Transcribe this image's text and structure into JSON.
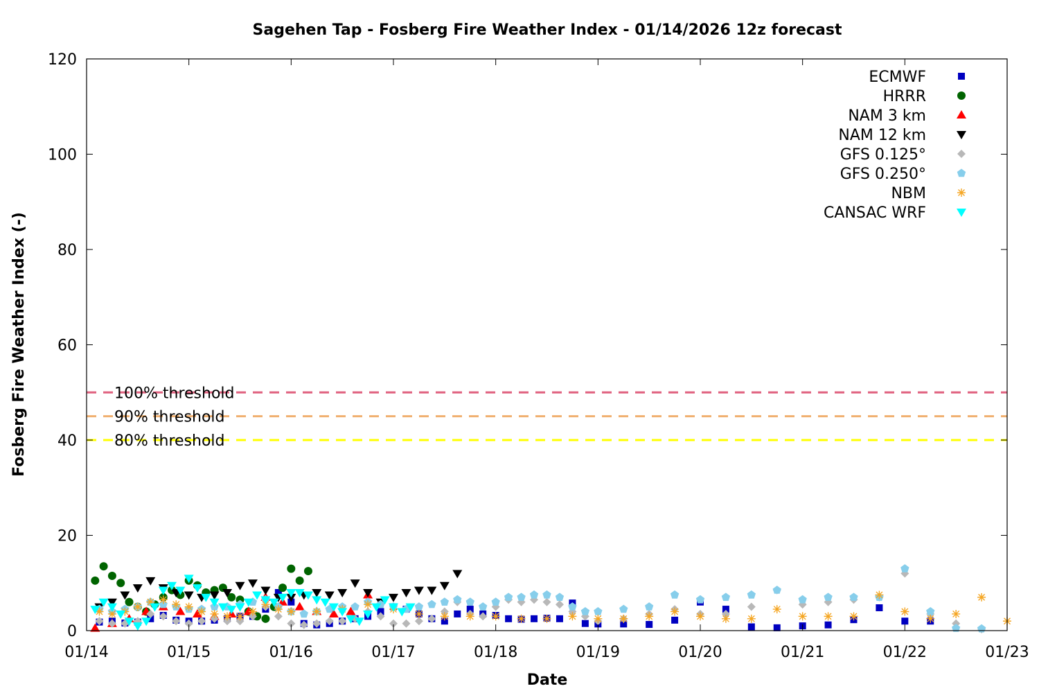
{
  "chart_data": {
    "type": "scatter",
    "title": "Sagehen Tap - Fosberg Fire Weather Index - 01/14/2026 12z forecast",
    "xlabel": "Date",
    "ylabel": "Fosberg Fire Weather Index (-)",
    "xlim": [
      "2026-01-14 00:00",
      "2026-01-23 00:00"
    ],
    "ylim": [
      0,
      120
    ],
    "x_ticks": [
      "01/14",
      "01/15",
      "01/16",
      "01/17",
      "01/18",
      "01/19",
      "01/20",
      "01/21",
      "01/22",
      "01/23"
    ],
    "y_ticks": [
      0,
      20,
      40,
      60,
      80,
      100,
      120
    ],
    "grid": false,
    "legend_position": "top-right",
    "thresholds": [
      {
        "label": "100% threshold",
        "value": 50,
        "color": "#e0607e"
      },
      {
        "label": "90% threshold",
        "value": 45,
        "color": "#f0b070"
      },
      {
        "label": "80% threshold",
        "value": 40,
        "color": "#ffff00"
      }
    ],
    "series": [
      {
        "name": "ECMWF",
        "color": "#0000c0",
        "marker": "square",
        "x": [
          "2026-01-14 03:00",
          "2026-01-14 06:00",
          "2026-01-14 09:00",
          "2026-01-14 12:00",
          "2026-01-14 15:00",
          "2026-01-14 18:00",
          "2026-01-14 21:00",
          "2026-01-15 00:00",
          "2026-01-15 03:00",
          "2026-01-15 06:00",
          "2026-01-15 09:00",
          "2026-01-15 12:00",
          "2026-01-15 15:00",
          "2026-01-15 18:00",
          "2026-01-15 21:00",
          "2026-01-16 00:00",
          "2026-01-16 03:00",
          "2026-01-16 06:00",
          "2026-01-16 09:00",
          "2026-01-16 12:00",
          "2026-01-16 15:00",
          "2026-01-16 18:00",
          "2026-01-16 21:00",
          "2026-01-17 00:00",
          "2026-01-17 03:00",
          "2026-01-17 06:00",
          "2026-01-17 09:00",
          "2026-01-17 12:00",
          "2026-01-17 15:00",
          "2026-01-17 18:00",
          "2026-01-17 21:00",
          "2026-01-18 00:00",
          "2026-01-18 03:00",
          "2026-01-18 06:00",
          "2026-01-18 09:00",
          "2026-01-18 12:00",
          "2026-01-18 15:00",
          "2026-01-18 18:00",
          "2026-01-18 21:00",
          "2026-01-19 00:00",
          "2026-01-19 06:00",
          "2026-01-19 12:00",
          "2026-01-19 18:00",
          "2026-01-20 00:00",
          "2026-01-20 06:00",
          "2026-01-20 12:00",
          "2026-01-20 18:00",
          "2026-01-21 00:00",
          "2026-01-21 06:00",
          "2026-01-21 12:00",
          "2026-01-21 18:00",
          "2026-01-22 00:00",
          "2026-01-22 06:00"
        ],
        "values": [
          1.8,
          2.0,
          1.6,
          1.8,
          2.5,
          3.2,
          2.2,
          2.0,
          2.0,
          2.2,
          2.5,
          3.0,
          3.0,
          4.5,
          8.0,
          6.0,
          1.5,
          1.2,
          1.5,
          2.0,
          2.5,
          3.0,
          4.0,
          5.0,
          4.5,
          3.5,
          2.5,
          2.0,
          3.5,
          4.5,
          3.5,
          3.2,
          2.5,
          2.4,
          2.5,
          2.6,
          2.5,
          5.8,
          1.5,
          1.4,
          1.4,
          1.3,
          2.2,
          6.0,
          4.5,
          0.8,
          0.6,
          1.0,
          1.2,
          2.3,
          4.8,
          2.0,
          2.0
        ]
      },
      {
        "name": "HRRR",
        "color": "#006400",
        "marker": "circle",
        "x": [
          "2026-01-14 02:00",
          "2026-01-14 04:00",
          "2026-01-14 06:00",
          "2026-01-14 08:00",
          "2026-01-14 10:00",
          "2026-01-14 12:00",
          "2026-01-14 14:00",
          "2026-01-14 16:00",
          "2026-01-14 18:00",
          "2026-01-14 20:00",
          "2026-01-14 22:00",
          "2026-01-15 00:00",
          "2026-01-15 02:00",
          "2026-01-15 04:00",
          "2026-01-15 06:00",
          "2026-01-15 08:00",
          "2026-01-15 10:00",
          "2026-01-15 12:00",
          "2026-01-15 14:00",
          "2026-01-15 16:00",
          "2026-01-15 18:00",
          "2026-01-15 20:00",
          "2026-01-15 22:00",
          "2026-01-16 00:00",
          "2026-01-16 02:00",
          "2026-01-16 04:00"
        ],
        "values": [
          10.5,
          13.5,
          11.5,
          10.0,
          6.0,
          5.0,
          4.0,
          5.5,
          7.0,
          8.5,
          7.5,
          10.5,
          9.5,
          8.0,
          8.5,
          9.0,
          7.0,
          6.5,
          4.0,
          3.0,
          2.5,
          5.0,
          9.0,
          13.0,
          10.5,
          12.5
        ]
      },
      {
        "name": "NAM 3 km",
        "color": "#ff0000",
        "marker": "triangle-up",
        "x": [
          "2026-01-14 02:00",
          "2026-01-14 06:00",
          "2026-01-14 10:00",
          "2026-01-14 14:00",
          "2026-01-14 18:00",
          "2026-01-14 22:00",
          "2026-01-15 02:00",
          "2026-01-15 06:00",
          "2026-01-15 10:00",
          "2026-01-15 14:00",
          "2026-01-15 18:00",
          "2026-01-15 22:00",
          "2026-01-16 02:00",
          "2026-01-16 06:00",
          "2026-01-16 10:00",
          "2026-01-16 14:00",
          "2026-01-16 18:00"
        ],
        "values": [
          0.5,
          1.5,
          2.5,
          4.0,
          5.0,
          4.0,
          3.5,
          3.0,
          3.5,
          4.0,
          7.0,
          6.0,
          5.0,
          4.0,
          3.5,
          4.0,
          7.5
        ]
      },
      {
        "name": "NAM 12 km",
        "color": "#000000",
        "marker": "triangle-down",
        "x": [
          "2026-01-14 03:00",
          "2026-01-14 06:00",
          "2026-01-14 09:00",
          "2026-01-14 12:00",
          "2026-01-14 15:00",
          "2026-01-14 18:00",
          "2026-01-14 21:00",
          "2026-01-15 00:00",
          "2026-01-15 03:00",
          "2026-01-15 06:00",
          "2026-01-15 09:00",
          "2026-01-15 12:00",
          "2026-01-15 15:00",
          "2026-01-15 18:00",
          "2026-01-15 21:00",
          "2026-01-16 00:00",
          "2026-01-16 03:00",
          "2026-01-16 06:00",
          "2026-01-16 09:00",
          "2026-01-16 12:00",
          "2026-01-16 15:00",
          "2026-01-16 18:00",
          "2026-01-16 21:00",
          "2026-01-17 00:00",
          "2026-01-17 03:00",
          "2026-01-17 06:00",
          "2026-01-17 09:00",
          "2026-01-17 12:00",
          "2026-01-17 15:00"
        ],
        "values": [
          5.0,
          6.0,
          7.5,
          9.0,
          10.5,
          9.0,
          8.0,
          7.5,
          7.0,
          7.5,
          8.0,
          9.5,
          10.0,
          8.5,
          7.0,
          7.0,
          7.5,
          8.0,
          7.5,
          8.0,
          10.0,
          8.0,
          6.0,
          7.0,
          8.0,
          8.5,
          8.5,
          9.5,
          12.0
        ]
      },
      {
        "name": "GFS 0.125°",
        "color": "#b8b8b8",
        "marker": "diamond",
        "x": [
          "2026-01-14 03:00",
          "2026-01-14 06:00",
          "2026-01-14 09:00",
          "2026-01-14 12:00",
          "2026-01-14 15:00",
          "2026-01-14 18:00",
          "2026-01-14 21:00",
          "2026-01-15 00:00",
          "2026-01-15 03:00",
          "2026-01-15 06:00",
          "2026-01-15 09:00",
          "2026-01-15 12:00",
          "2026-01-15 15:00",
          "2026-01-15 18:00",
          "2026-01-15 21:00",
          "2026-01-16 00:00",
          "2026-01-16 03:00",
          "2026-01-16 06:00",
          "2026-01-16 09:00",
          "2026-01-16 12:00",
          "2026-01-16 15:00",
          "2026-01-16 18:00",
          "2026-01-16 21:00",
          "2026-01-17 00:00",
          "2026-01-17 03:00",
          "2026-01-17 06:00",
          "2026-01-17 09:00",
          "2026-01-17 12:00",
          "2026-01-17 15:00",
          "2026-01-17 18:00",
          "2026-01-17 21:00",
          "2026-01-18 00:00",
          "2026-01-18 03:00",
          "2026-01-18 06:00",
          "2026-01-18 09:00",
          "2026-01-18 12:00",
          "2026-01-18 15:00",
          "2026-01-18 18:00",
          "2026-01-18 21:00",
          "2026-01-19 00:00",
          "2026-01-19 06:00",
          "2026-01-19 12:00",
          "2026-01-19 18:00",
          "2026-01-20 00:00",
          "2026-01-20 06:00",
          "2026-01-20 12:00",
          "2026-01-20 18:00",
          "2026-01-21 00:00",
          "2026-01-21 06:00",
          "2026-01-21 12:00",
          "2026-01-21 18:00",
          "2026-01-22 00:00",
          "2026-01-22 06:00",
          "2026-01-22 12:00",
          "2026-01-22 18:00"
        ],
        "values": [
          2.0,
          1.5,
          1.5,
          2.0,
          3.5,
          3.0,
          2.0,
          1.5,
          2.0,
          2.5,
          2.0,
          2.0,
          3.0,
          5.0,
          3.0,
          1.5,
          1.2,
          1.5,
          2.0,
          2.0,
          2.5,
          4.0,
          3.0,
          1.5,
          1.5,
          2.0,
          2.5,
          4.0,
          6.0,
          3.5,
          3.0,
          5.0,
          6.5,
          6.0,
          6.5,
          6.0,
          5.5,
          4.0,
          3.0,
          2.0,
          2.5,
          3.5,
          4.5,
          3.5,
          3.5,
          5.0,
          8.5,
          5.5,
          6.0,
          6.5,
          7.0,
          12.0,
          3.5,
          1.5,
          0.3
        ]
      },
      {
        "name": "GFS 0.250°",
        "color": "#87ceeb",
        "marker": "pentagon",
        "x": [
          "2026-01-14 03:00",
          "2026-01-14 06:00",
          "2026-01-14 09:00",
          "2026-01-14 12:00",
          "2026-01-14 15:00",
          "2026-01-14 18:00",
          "2026-01-14 21:00",
          "2026-01-15 00:00",
          "2026-01-15 03:00",
          "2026-01-15 06:00",
          "2026-01-15 09:00",
          "2026-01-15 12:00",
          "2026-01-15 15:00",
          "2026-01-15 18:00",
          "2026-01-15 21:00",
          "2026-01-16 00:00",
          "2026-01-16 03:00",
          "2026-01-16 06:00",
          "2026-01-16 09:00",
          "2026-01-16 12:00",
          "2026-01-16 15:00",
          "2026-01-16 18:00",
          "2026-01-16 21:00",
          "2026-01-17 00:00",
          "2026-01-17 03:00",
          "2026-01-17 06:00",
          "2026-01-17 09:00",
          "2026-01-17 12:00",
          "2026-01-17 15:00",
          "2026-01-17 18:00",
          "2026-01-17 21:00",
          "2026-01-18 00:00",
          "2026-01-18 03:00",
          "2026-01-18 06:00",
          "2026-01-18 09:00",
          "2026-01-18 12:00",
          "2026-01-18 15:00",
          "2026-01-18 18:00",
          "2026-01-18 21:00",
          "2026-01-19 00:00",
          "2026-01-19 06:00",
          "2026-01-19 12:00",
          "2026-01-19 18:00",
          "2026-01-20 00:00",
          "2026-01-20 06:00",
          "2026-01-20 12:00",
          "2026-01-20 18:00",
          "2026-01-21 00:00",
          "2026-01-21 06:00",
          "2026-01-21 12:00",
          "2026-01-21 18:00",
          "2026-01-22 00:00",
          "2026-01-22 06:00",
          "2026-01-22 12:00",
          "2026-01-22 18:00"
        ],
        "values": [
          4.5,
          4.0,
          4.5,
          5.0,
          6.0,
          5.5,
          5.0,
          4.5,
          4.5,
          5.0,
          5.0,
          5.5,
          6.0,
          6.5,
          5.0,
          4.0,
          3.5,
          4.0,
          4.5,
          5.0,
          5.0,
          6.0,
          5.5,
          5.0,
          4.5,
          5.0,
          5.5,
          6.0,
          6.5,
          6.0,
          5.0,
          6.0,
          7.0,
          7.0,
          7.5,
          7.5,
          7.0,
          5.0,
          4.0,
          4.0,
          4.5,
          5.0,
          7.5,
          6.5,
          7.0,
          7.5,
          8.5,
          6.5,
          7.0,
          7.0,
          7.0,
          13.0,
          4.0,
          0.5,
          0.4
        ]
      },
      {
        "name": "NBM",
        "color": "#f5a623",
        "marker": "asterisk",
        "x": [
          "2026-01-14 03:00",
          "2026-01-14 06:00",
          "2026-01-14 09:00",
          "2026-01-14 12:00",
          "2026-01-14 15:00",
          "2026-01-14 18:00",
          "2026-01-14 21:00",
          "2026-01-15 00:00",
          "2026-01-15 03:00",
          "2026-01-15 06:00",
          "2026-01-15 09:00",
          "2026-01-15 12:00",
          "2026-01-15 15:00",
          "2026-01-15 18:00",
          "2026-01-15 21:00",
          "2026-01-16 00:00",
          "2026-01-16 06:00",
          "2026-01-16 12:00",
          "2026-01-16 18:00",
          "2026-01-17 00:00",
          "2026-01-17 06:00",
          "2026-01-17 12:00",
          "2026-01-17 18:00",
          "2026-01-18 00:00",
          "2026-01-18 06:00",
          "2026-01-18 12:00",
          "2026-01-18 18:00",
          "2026-01-19 00:00",
          "2026-01-19 06:00",
          "2026-01-19 12:00",
          "2026-01-19 18:00",
          "2026-01-20 00:00",
          "2026-01-20 06:00",
          "2026-01-20 12:00",
          "2026-01-20 18:00",
          "2026-01-21 00:00",
          "2026-01-21 06:00",
          "2026-01-21 12:00",
          "2026-01-21 18:00",
          "2026-01-22 00:00",
          "2026-01-22 06:00",
          "2026-01-22 12:00",
          "2026-01-22 18:00",
          "2026-01-23 00:00"
        ],
        "values": [
          4.0,
          3.5,
          4.0,
          5.0,
          6.0,
          6.5,
          5.5,
          5.0,
          4.0,
          3.5,
          3.0,
          3.0,
          4.0,
          5.5,
          4.5,
          4.0,
          4.0,
          4.5,
          5.5,
          4.5,
          3.5,
          3.0,
          3.0,
          3.0,
          2.5,
          2.5,
          3.0,
          2.5,
          2.5,
          3.0,
          4.0,
          3.0,
          2.5,
          2.5,
          4.5,
          3.0,
          3.0,
          3.0,
          7.5,
          4.0,
          2.5,
          3.5,
          7.0,
          2.0
        ]
      },
      {
        "name": "CANSAC WRF",
        "color": "#00ffff",
        "marker": "triangle-down",
        "x": [
          "2026-01-14 02:00",
          "2026-01-14 04:00",
          "2026-01-14 06:00",
          "2026-01-14 08:00",
          "2026-01-14 10:00",
          "2026-01-14 12:00",
          "2026-01-14 14:00",
          "2026-01-14 16:00",
          "2026-01-14 18:00",
          "2026-01-14 20:00",
          "2026-01-14 22:00",
          "2026-01-15 00:00",
          "2026-01-15 02:00",
          "2026-01-15 04:00",
          "2026-01-15 06:00",
          "2026-01-15 08:00",
          "2026-01-15 10:00",
          "2026-01-15 12:00",
          "2026-01-15 14:00",
          "2026-01-15 16:00",
          "2026-01-15 18:00",
          "2026-01-15 20:00",
          "2026-01-15 22:00",
          "2026-01-16 00:00",
          "2026-01-16 02:00",
          "2026-01-16 04:00",
          "2026-01-16 06:00",
          "2026-01-16 08:00",
          "2026-01-16 10:00",
          "2026-01-16 12:00",
          "2026-01-16 14:00",
          "2026-01-16 16:00",
          "2026-01-16 18:00",
          "2026-01-16 20:00",
          "2026-01-16 22:00",
          "2026-01-17 00:00",
          "2026-01-17 02:00",
          "2026-01-17 04:00"
        ],
        "values": [
          4.5,
          6.0,
          5.0,
          3.5,
          2.0,
          1.0,
          2.0,
          5.0,
          8.5,
          9.5,
          8.5,
          11.0,
          9.0,
          7.0,
          6.0,
          5.0,
          4.5,
          5.0,
          6.0,
          7.5,
          6.5,
          6.0,
          7.0,
          8.0,
          8.0,
          7.5,
          6.5,
          6.0,
          5.0,
          4.0,
          2.5,
          2.0,
          3.5,
          5.0,
          6.5,
          5.0,
          4.0,
          5.0
        ]
      }
    ]
  }
}
